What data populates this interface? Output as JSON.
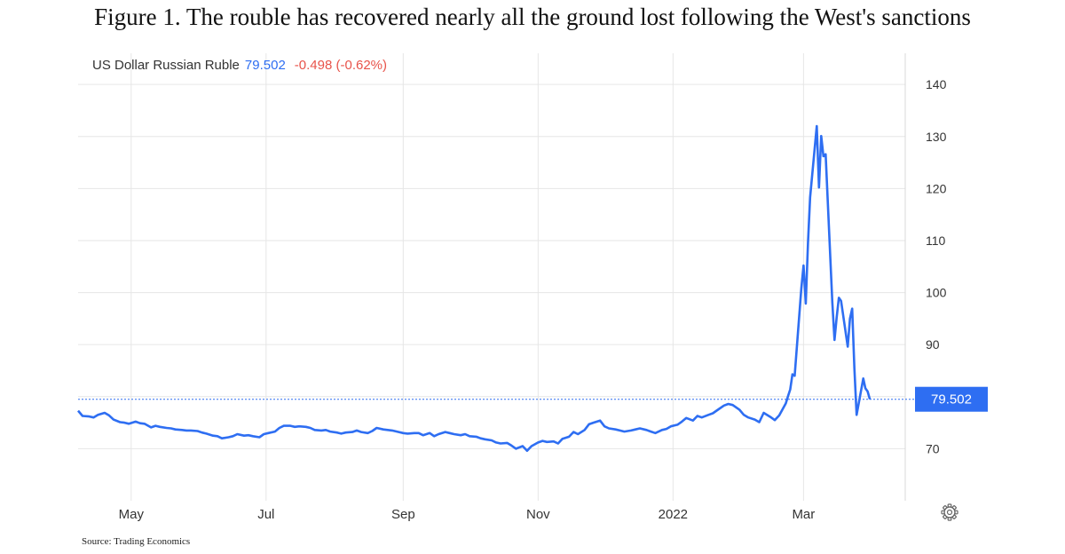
{
  "figure_title": "Figure 1. The rouble has recovered nearly all the ground lost following the West's sanctions",
  "source": "Source: Trading Economics",
  "header": {
    "instrument": "US Dollar Russian Ruble",
    "price": "79.502",
    "change": "-0.498 (-0.62%)"
  },
  "colors": {
    "line": "#2e6ef2",
    "change": "#e8534a",
    "grid": "#e6e6e6",
    "text": "#333333"
  },
  "settings_icon": "gear-icon",
  "chart_data": {
    "type": "line",
    "title": "Figure 1. The rouble has recovered nearly all the ground lost following the West's sanctions",
    "xlabel": "",
    "ylabel": "",
    "ylim": [
      60,
      146
    ],
    "yticks": [
      70,
      80,
      90,
      100,
      110,
      120,
      130,
      140
    ],
    "ytick_labels": [
      "70",
      "",
      "90",
      "100",
      "110",
      "120",
      "130",
      "140"
    ],
    "xlim": [
      "2021-04-07",
      "2022-04-16"
    ],
    "xticks": [
      {
        "date": "2021-05-01",
        "label": "May"
      },
      {
        "date": "2021-07-01",
        "label": "Jul"
      },
      {
        "date": "2021-09-01",
        "label": "Sep"
      },
      {
        "date": "2021-11-01",
        "label": "Nov"
      },
      {
        "date": "2022-01-01",
        "label": "2022"
      },
      {
        "date": "2022-03-01",
        "label": "Mar"
      }
    ],
    "grid": true,
    "last_value": 79.502,
    "last_value_label": "79.502",
    "series": [
      {
        "values": [
          [
            "2021-04-07",
            77.3
          ],
          [
            "2021-04-09",
            76.3
          ],
          [
            "2021-04-12",
            76.2
          ],
          [
            "2021-04-14",
            76.0
          ],
          [
            "2021-04-16",
            76.5
          ],
          [
            "2021-04-19",
            76.9
          ],
          [
            "2021-04-21",
            76.4
          ],
          [
            "2021-04-23",
            75.6
          ],
          [
            "2021-04-26",
            75.1
          ],
          [
            "2021-04-28",
            75.0
          ],
          [
            "2021-04-30",
            74.8
          ],
          [
            "2021-05-03",
            75.2
          ],
          [
            "2021-05-05",
            74.9
          ],
          [
            "2021-05-07",
            74.8
          ],
          [
            "2021-05-10",
            74.1
          ],
          [
            "2021-05-12",
            74.4
          ],
          [
            "2021-05-14",
            74.2
          ],
          [
            "2021-05-17",
            74.0
          ],
          [
            "2021-05-19",
            73.9
          ],
          [
            "2021-05-21",
            73.7
          ],
          [
            "2021-05-24",
            73.6
          ],
          [
            "2021-05-26",
            73.5
          ],
          [
            "2021-05-28",
            73.5
          ],
          [
            "2021-05-31",
            73.4
          ],
          [
            "2021-06-02",
            73.1
          ],
          [
            "2021-06-04",
            72.9
          ],
          [
            "2021-06-07",
            72.5
          ],
          [
            "2021-06-09",
            72.4
          ],
          [
            "2021-06-11",
            72.0
          ],
          [
            "2021-06-14",
            72.2
          ],
          [
            "2021-06-16",
            72.4
          ],
          [
            "2021-06-18",
            72.8
          ],
          [
            "2021-06-21",
            72.5
          ],
          [
            "2021-06-23",
            72.6
          ],
          [
            "2021-06-25",
            72.4
          ],
          [
            "2021-06-28",
            72.2
          ],
          [
            "2021-06-30",
            72.8
          ],
          [
            "2021-07-02",
            73.0
          ],
          [
            "2021-07-05",
            73.3
          ],
          [
            "2021-07-07",
            74.0
          ],
          [
            "2021-07-09",
            74.4
          ],
          [
            "2021-07-12",
            74.4
          ],
          [
            "2021-07-14",
            74.2
          ],
          [
            "2021-07-16",
            74.3
          ],
          [
            "2021-07-19",
            74.2
          ],
          [
            "2021-07-21",
            74.0
          ],
          [
            "2021-07-23",
            73.6
          ],
          [
            "2021-07-26",
            73.5
          ],
          [
            "2021-07-28",
            73.6
          ],
          [
            "2021-07-30",
            73.3
          ],
          [
            "2021-08-02",
            73.1
          ],
          [
            "2021-08-04",
            72.9
          ],
          [
            "2021-08-06",
            73.1
          ],
          [
            "2021-08-09",
            73.2
          ],
          [
            "2021-08-11",
            73.5
          ],
          [
            "2021-08-13",
            73.2
          ],
          [
            "2021-08-16",
            73.0
          ],
          [
            "2021-08-18",
            73.4
          ],
          [
            "2021-08-20",
            74.0
          ],
          [
            "2021-08-23",
            73.7
          ],
          [
            "2021-08-25",
            73.6
          ],
          [
            "2021-08-27",
            73.5
          ],
          [
            "2021-08-30",
            73.2
          ],
          [
            "2021-09-01",
            73.0
          ],
          [
            "2021-09-03",
            72.9
          ],
          [
            "2021-09-06",
            73.0
          ],
          [
            "2021-09-08",
            73.0
          ],
          [
            "2021-09-10",
            72.6
          ],
          [
            "2021-09-13",
            73.0
          ],
          [
            "2021-09-15",
            72.4
          ],
          [
            "2021-09-17",
            72.8
          ],
          [
            "2021-09-20",
            73.2
          ],
          [
            "2021-09-22",
            73.0
          ],
          [
            "2021-09-24",
            72.8
          ],
          [
            "2021-09-27",
            72.6
          ],
          [
            "2021-09-29",
            72.8
          ],
          [
            "2021-10-01",
            72.4
          ],
          [
            "2021-10-04",
            72.3
          ],
          [
            "2021-10-06",
            72.0
          ],
          [
            "2021-10-08",
            71.8
          ],
          [
            "2021-10-11",
            71.6
          ],
          [
            "2021-10-13",
            71.2
          ],
          [
            "2021-10-15",
            71.0
          ],
          [
            "2021-10-18",
            71.1
          ],
          [
            "2021-10-20",
            70.6
          ],
          [
            "2021-10-22",
            70.0
          ],
          [
            "2021-10-25",
            70.5
          ],
          [
            "2021-10-27",
            69.6
          ],
          [
            "2021-10-29",
            70.5
          ],
          [
            "2021-11-01",
            71.2
          ],
          [
            "2021-11-03",
            71.5
          ],
          [
            "2021-11-05",
            71.3
          ],
          [
            "2021-11-08",
            71.4
          ],
          [
            "2021-11-10",
            71.0
          ],
          [
            "2021-11-12",
            71.9
          ],
          [
            "2021-11-15",
            72.3
          ],
          [
            "2021-11-17",
            73.2
          ],
          [
            "2021-11-19",
            72.8
          ],
          [
            "2021-11-22",
            73.6
          ],
          [
            "2021-11-24",
            74.7
          ],
          [
            "2021-11-26",
            75.0
          ],
          [
            "2021-11-29",
            75.4
          ],
          [
            "2021-12-01",
            74.3
          ],
          [
            "2021-12-03",
            73.9
          ],
          [
            "2021-12-06",
            73.7
          ],
          [
            "2021-12-08",
            73.5
          ],
          [
            "2021-12-10",
            73.3
          ],
          [
            "2021-12-13",
            73.5
          ],
          [
            "2021-12-15",
            73.7
          ],
          [
            "2021-12-17",
            73.9
          ],
          [
            "2021-12-20",
            73.6
          ],
          [
            "2021-12-22",
            73.3
          ],
          [
            "2021-12-24",
            73.0
          ],
          [
            "2021-12-27",
            73.6
          ],
          [
            "2021-12-29",
            73.8
          ],
          [
            "2021-12-31",
            74.3
          ],
          [
            "2022-01-03",
            74.6
          ],
          [
            "2022-01-05",
            75.2
          ],
          [
            "2022-01-07",
            75.9
          ],
          [
            "2022-01-10",
            75.4
          ],
          [
            "2022-01-12",
            76.3
          ],
          [
            "2022-01-14",
            76.0
          ],
          [
            "2022-01-17",
            76.5
          ],
          [
            "2022-01-19",
            76.8
          ],
          [
            "2022-01-21",
            77.4
          ],
          [
            "2022-01-24",
            78.3
          ],
          [
            "2022-01-26",
            78.6
          ],
          [
            "2022-01-28",
            78.4
          ],
          [
            "2022-01-31",
            77.5
          ],
          [
            "2022-02-02",
            76.5
          ],
          [
            "2022-02-04",
            76.0
          ],
          [
            "2022-02-07",
            75.6
          ],
          [
            "2022-02-09",
            75.1
          ],
          [
            "2022-02-11",
            76.9
          ],
          [
            "2022-02-14",
            76.1
          ],
          [
            "2022-02-16",
            75.5
          ],
          [
            "2022-02-18",
            76.4
          ],
          [
            "2022-02-21",
            78.7
          ],
          [
            "2022-02-22",
            80.1
          ],
          [
            "2022-02-23",
            81.4
          ],
          [
            "2022-02-24",
            84.3
          ],
          [
            "2022-02-25",
            84.0
          ],
          [
            "2022-02-28",
            100.8
          ],
          [
            "2022-03-01",
            105.2
          ],
          [
            "2022-03-02",
            97.9
          ],
          [
            "2022-03-03",
            109.5
          ],
          [
            "2022-03-04",
            118.3
          ],
          [
            "2022-03-07",
            132.0
          ],
          [
            "2022-03-08",
            120.2
          ],
          [
            "2022-03-09",
            130.1
          ],
          [
            "2022-03-10",
            126.2
          ],
          [
            "2022-03-11",
            126.6
          ],
          [
            "2022-03-14",
            98.2
          ],
          [
            "2022-03-15",
            90.9
          ],
          [
            "2022-03-16",
            95.2
          ],
          [
            "2022-03-17",
            99.0
          ],
          [
            "2022-03-18",
            98.4
          ],
          [
            "2022-03-21",
            89.6
          ],
          [
            "2022-03-22",
            95.0
          ],
          [
            "2022-03-23",
            96.9
          ],
          [
            "2022-03-24",
            85.4
          ],
          [
            "2022-03-25",
            76.5
          ],
          [
            "2022-03-28",
            83.5
          ],
          [
            "2022-03-29",
            81.6
          ],
          [
            "2022-03-30",
            81.0
          ],
          [
            "2022-03-31",
            79.502
          ]
        ]
      }
    ]
  }
}
